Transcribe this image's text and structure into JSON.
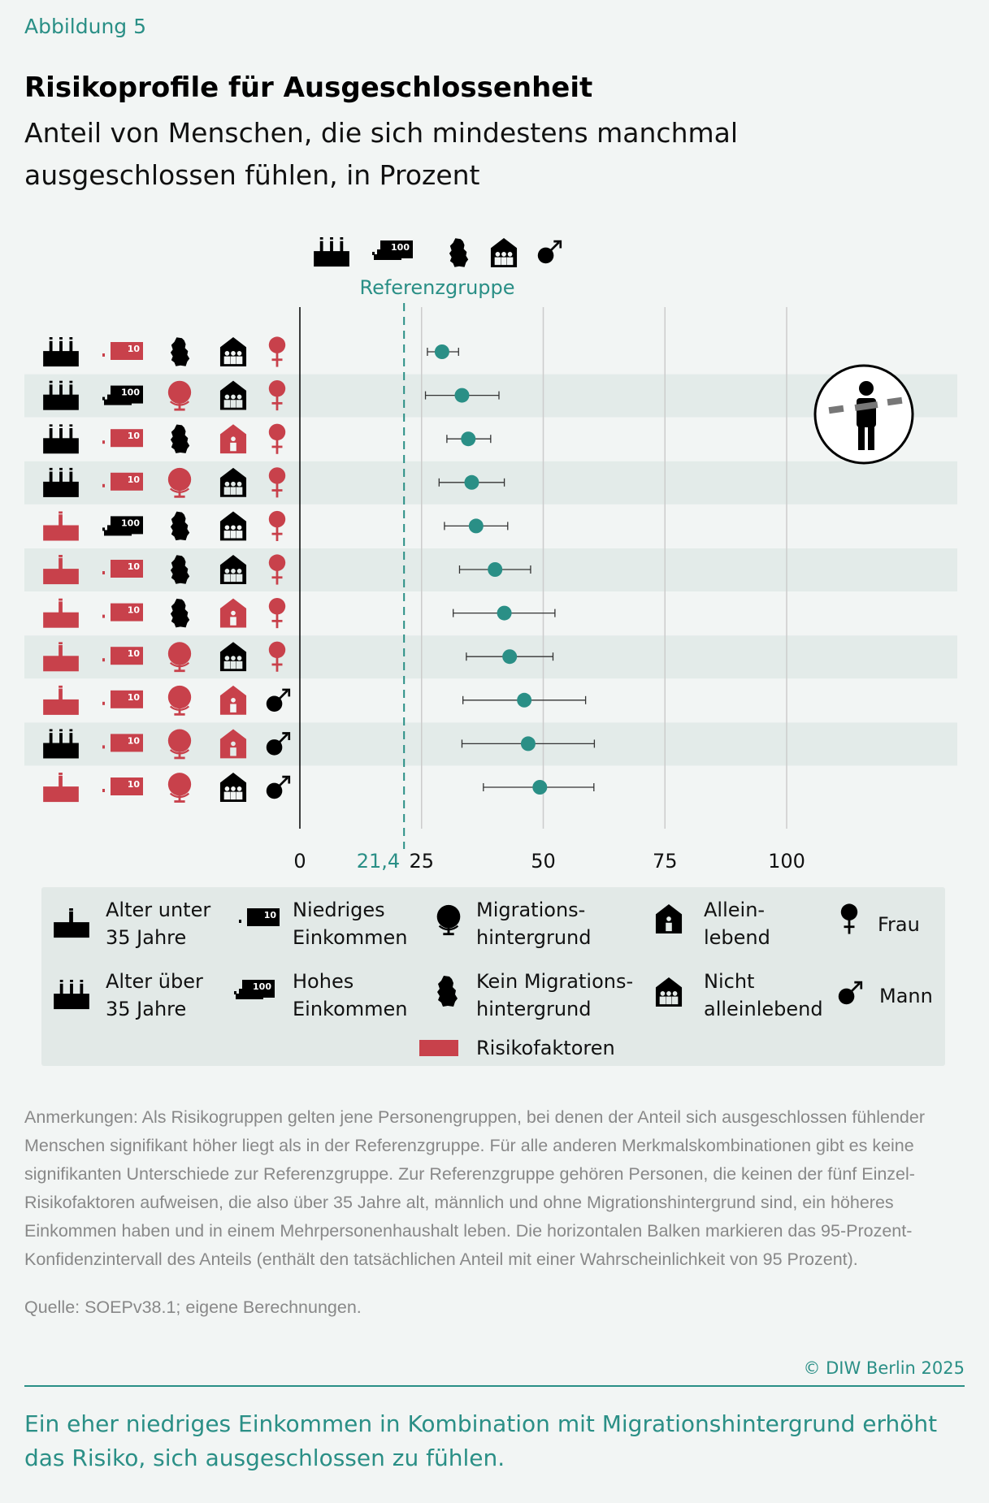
{
  "figure_label": "Abbildung 5",
  "title": "Risikoprofile für Ausgeschlossenheit",
  "subtitle": "Anteil von Menschen, die sich mindestens manchmal ausgeschlossen fühlen, in Prozent",
  "colors": {
    "teal": "#2a8f86",
    "risk": "#c8414b",
    "black": "#111111",
    "band": "#e3ebe9",
    "grid": "#cccccc"
  },
  "chart_data": {
    "type": "scatter",
    "title": "Risikoprofile für Ausgeschlossenheit",
    "xlim": [
      0,
      100
    ],
    "x_ticks": [
      0,
      25,
      50,
      75,
      100
    ],
    "reference": {
      "value": 21.4,
      "label": "21,4",
      "name": "Referenzgruppe"
    },
    "reference_profile": [
      "age-over-35-icon",
      "high-income-icon",
      "germany-icon",
      "multi-household-icon",
      "male-icon"
    ],
    "rows": [
      {
        "age": "over35",
        "income": "low",
        "migration": "no",
        "household": "multi",
        "sex": "f",
        "value": 29.2,
        "ci": [
          26.2,
          32.6
        ]
      },
      {
        "age": "over35",
        "income": "high",
        "migration": "yes",
        "household": "multi",
        "sex": "f",
        "value": 33.3,
        "ci": [
          25.8,
          40.9
        ]
      },
      {
        "age": "over35",
        "income": "low",
        "migration": "no",
        "household": "single",
        "sex": "f",
        "value": 34.6,
        "ci": [
          30.2,
          39.2
        ]
      },
      {
        "age": "over35",
        "income": "low",
        "migration": "yes",
        "household": "multi",
        "sex": "f",
        "value": 35.3,
        "ci": [
          28.6,
          42.0
        ]
      },
      {
        "age": "under35",
        "income": "high",
        "migration": "no",
        "household": "multi",
        "sex": "f",
        "value": 36.2,
        "ci": [
          29.7,
          42.7
        ]
      },
      {
        "age": "under35",
        "income": "low",
        "migration": "no",
        "household": "multi",
        "sex": "f",
        "value": 40.1,
        "ci": [
          32.8,
          47.4
        ]
      },
      {
        "age": "under35",
        "income": "low",
        "migration": "no",
        "household": "single",
        "sex": "f",
        "value": 42.0,
        "ci": [
          31.5,
          52.4
        ]
      },
      {
        "age": "under35",
        "income": "low",
        "migration": "yes",
        "household": "multi",
        "sex": "f",
        "value": 43.1,
        "ci": [
          34.2,
          52.0
        ]
      },
      {
        "age": "under35",
        "income": "low",
        "migration": "yes",
        "household": "single",
        "sex": "m",
        "value": 46.1,
        "ci": [
          33.5,
          58.7
        ]
      },
      {
        "age": "over35",
        "income": "low",
        "migration": "yes",
        "household": "single",
        "sex": "m",
        "value": 46.9,
        "ci": [
          33.3,
          60.5
        ]
      },
      {
        "age": "under35",
        "income": "low",
        "migration": "yes",
        "household": "multi",
        "sex": "m",
        "value": 49.3,
        "ci": [
          37.7,
          60.4
        ]
      }
    ]
  },
  "legend": {
    "age_under": "Alter unter 35 Jahre",
    "age_over": "Alter über 35 Jahre",
    "income_low": "Niedriges Einkommen",
    "income_high": "Hohes Einkommen",
    "migration_yes": "Migrations- hintergrund",
    "migration_no": "Kein Migrations- hintergrund",
    "single": "Allein- lebend",
    "multi": "Nicht alleinlebend",
    "female": "Frau",
    "male": "Mann",
    "risk": "Risikofaktoren"
  },
  "money_low": "10",
  "money_high": "100",
  "notes": "Anmerkungen: Als Risikogruppen gelten jene Personengruppen, bei denen der Anteil sich ausgeschlossen fühlender Menschen signifikant höher liegt als in der Referenzgruppe. Für alle anderen Merkmalskombinationen gibt es keine signifikanten Unterschiede zur Referenzgruppe.  Zur Referenzgruppe gehören Personen, die keinen der fünf Einzel-Risikofaktoren aufweisen, die also über 35 Jahre alt, männlich und ohne Migrationshintergrund sind, ein höheres Einkommen haben und in einem Mehrpersonenhaushalt leben. Die horizontalen Balken markieren das 95-Prozent-Konfidenzintervall des Anteils (enthält den tatsächlichen Anteil mit einer Wahrscheinlichkeit von 95 Prozent).",
  "source": "Quelle: SOEPv38.1; eigene Berechnungen.",
  "copyright": "© DIW Berlin 2025",
  "takeaway": "Ein eher niedriges Einkommen in Kombination mit Migrationshintergrund erhöht das Risiko, sich ausgeschlossen zu fühlen."
}
